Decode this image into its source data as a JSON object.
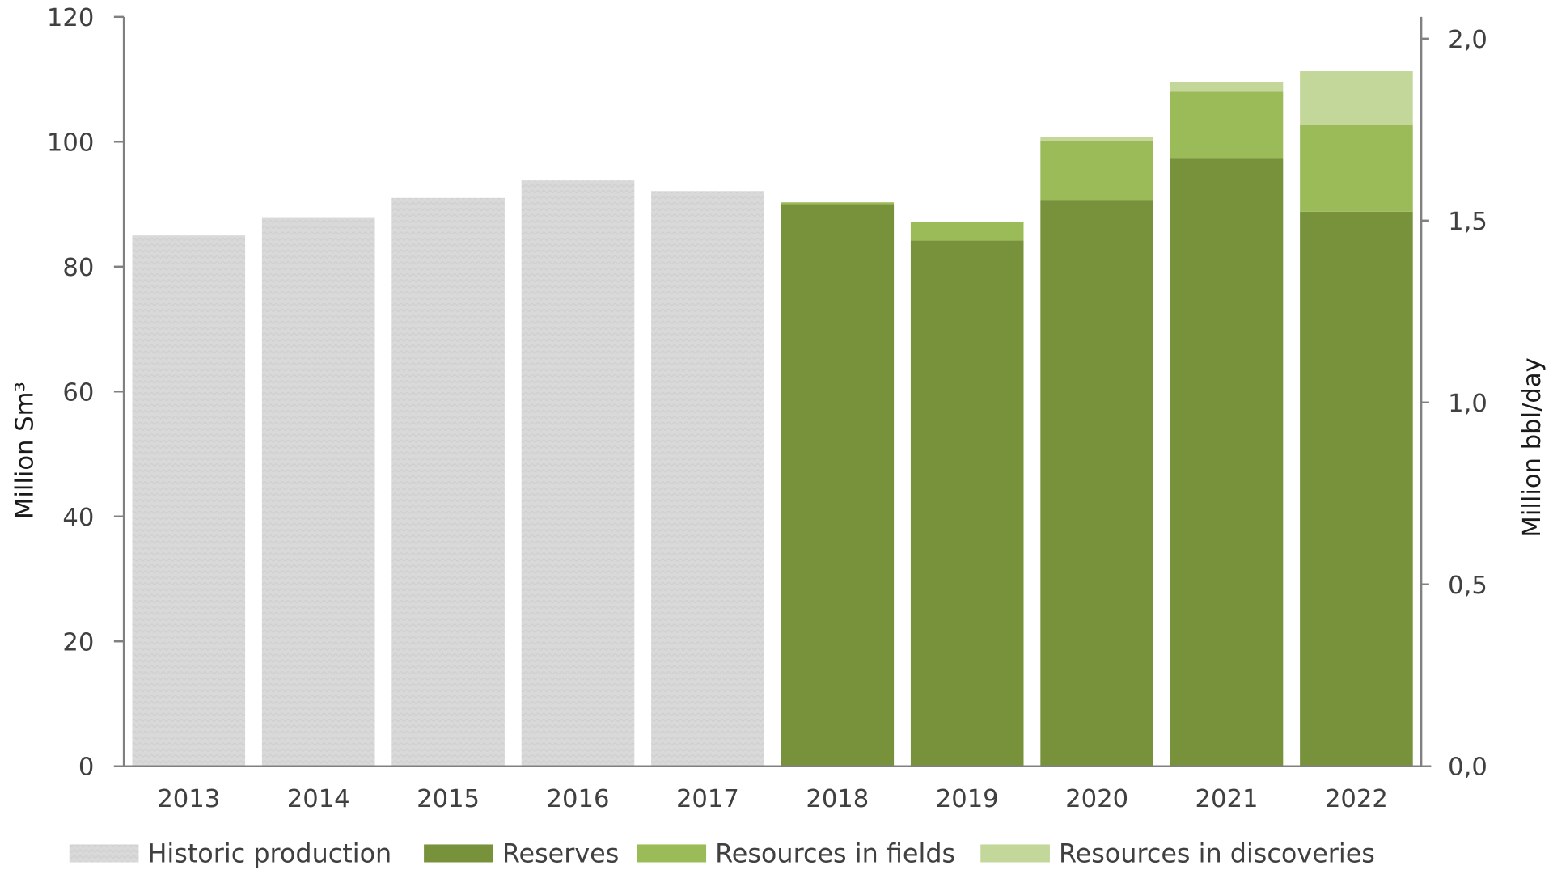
{
  "chart_data": {
    "type": "bar",
    "stacked": true,
    "categories": [
      "2013",
      "2014",
      "2015",
      "2016",
      "2017",
      "2018",
      "2019",
      "2020",
      "2021",
      "2022"
    ],
    "series": [
      {
        "name": "Historic production",
        "color": "#d9d9d9",
        "values": [
          85.0,
          87.8,
          91.0,
          93.8,
          92.1,
          0,
          0,
          0,
          0,
          0
        ]
      },
      {
        "name": "Reserves",
        "color": "#77923b",
        "values": [
          0,
          0,
          0,
          0,
          0,
          90.0,
          84.2,
          90.7,
          97.3,
          88.8
        ]
      },
      {
        "name": "Resources in fields",
        "color": "#9bbb59",
        "values": [
          0,
          0,
          0,
          0,
          0,
          0.3,
          3.0,
          9.5,
          10.7,
          13.9
        ]
      },
      {
        "name": "Resources in discoveries",
        "color": "#c4d79b",
        "values": [
          0,
          0,
          0,
          0,
          0,
          0,
          0,
          0.6,
          1.5,
          8.6
        ]
      }
    ],
    "ylabel": "Million Sm³",
    "ylim": [
      0,
      120
    ],
    "yticks": [
      "0",
      "20",
      "40",
      "60",
      "80",
      "100",
      "120"
    ],
    "y2label": "Million bbl/day",
    "y2lim": [
      0,
      2.06
    ],
    "y2ticks": [
      "0,0",
      "0,5",
      "1,0",
      "1,5",
      "2,0"
    ],
    "grid": false,
    "legend": "bottom"
  }
}
